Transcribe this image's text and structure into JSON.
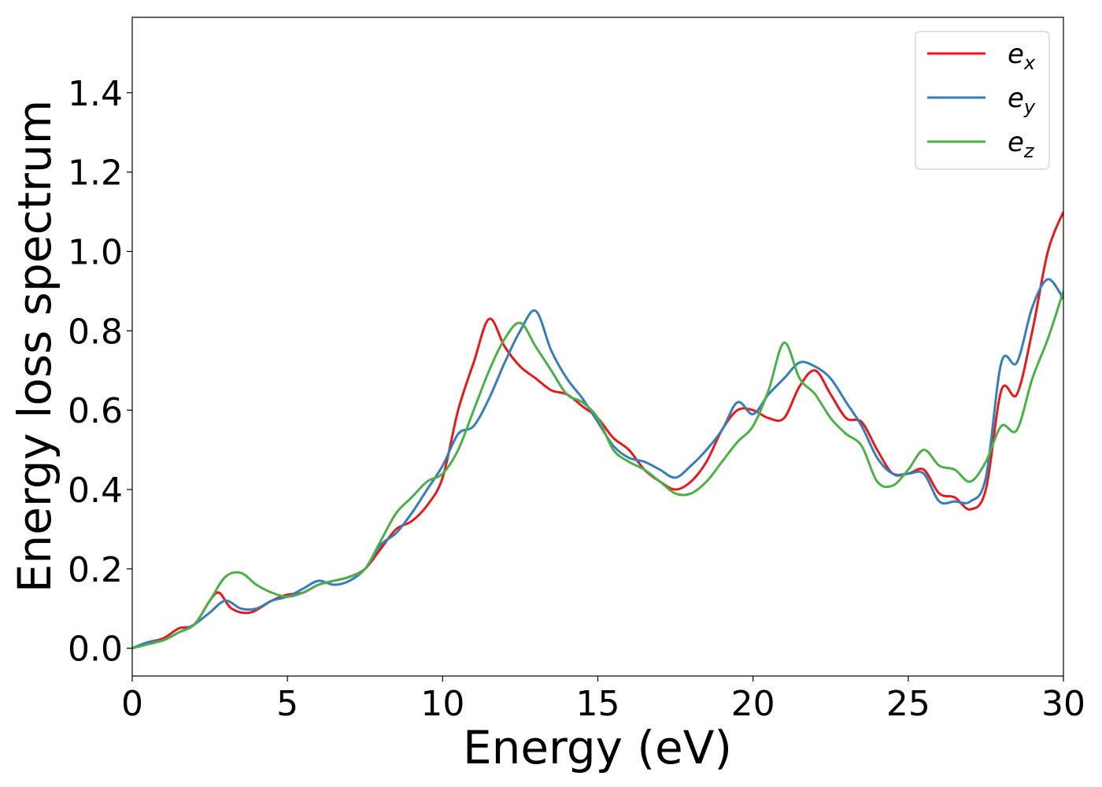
{
  "chart_data": {
    "type": "line",
    "title": "",
    "xlabel": "Energy (eV)",
    "ylabel": "Energy loss spectrum",
    "xlim": [
      0,
      30
    ],
    "ylim": [
      -0.07,
      1.59
    ],
    "xticks": [
      0,
      5,
      10,
      15,
      20,
      25,
      30
    ],
    "yticks": [
      0.0,
      0.2,
      0.4,
      0.6,
      0.8,
      1.0,
      1.2,
      1.4
    ],
    "xtick_labels": [
      "0",
      "5",
      "10",
      "15",
      "20",
      "25",
      "30"
    ],
    "ytick_labels": [
      "0.0",
      "0.2",
      "0.4",
      "0.6",
      "0.8",
      "1.0",
      "1.2",
      "1.4"
    ],
    "grid": false,
    "legend_position": "top-right",
    "series": [
      {
        "name": "e",
        "subscript": "x",
        "color": "#e41a1c",
        "x": [
          0,
          0.5,
          1,
          1.5,
          2,
          2.5,
          2.8,
          3.2,
          3.8,
          4.5,
          5,
          5.5,
          6,
          6.5,
          7,
          7.5,
          8,
          8.5,
          9,
          9.5,
          10,
          10.5,
          11,
          11.5,
          12,
          12.5,
          13,
          13.5,
          14,
          14.5,
          15,
          15.5,
          16,
          16.5,
          17,
          17.5,
          18,
          18.5,
          19,
          19.5,
          20,
          20.5,
          21,
          21.5,
          22,
          22.5,
          23,
          23.5,
          24,
          24.5,
          25,
          25.5,
          26,
          26.5,
          27,
          27.5,
          28,
          28.5,
          29,
          29.5,
          30
        ],
        "y": [
          0.0,
          0.015,
          0.025,
          0.05,
          0.06,
          0.12,
          0.14,
          0.1,
          0.09,
          0.12,
          0.135,
          0.14,
          0.16,
          0.17,
          0.18,
          0.2,
          0.25,
          0.3,
          0.32,
          0.36,
          0.43,
          0.6,
          0.72,
          0.83,
          0.76,
          0.71,
          0.68,
          0.65,
          0.64,
          0.61,
          0.58,
          0.53,
          0.5,
          0.45,
          0.42,
          0.4,
          0.42,
          0.47,
          0.55,
          0.6,
          0.6,
          0.58,
          0.58,
          0.66,
          0.7,
          0.64,
          0.58,
          0.57,
          0.5,
          0.44,
          0.44,
          0.45,
          0.39,
          0.38,
          0.35,
          0.4,
          0.65,
          0.64,
          0.8,
          1.0,
          1.1
        ]
      },
      {
        "name": "e",
        "subscript": "y",
        "color": "#377eb8",
        "x": [
          0,
          0.5,
          1,
          1.5,
          2,
          2.5,
          3,
          3.5,
          4,
          4.5,
          5,
          5.5,
          6,
          6.5,
          7,
          7.5,
          8,
          8.5,
          9,
          9.5,
          10,
          10.5,
          11,
          11.5,
          12,
          12.5,
          13,
          13.5,
          14,
          14.5,
          15,
          15.5,
          16,
          16.5,
          17,
          17.5,
          18,
          18.5,
          19,
          19.5,
          20,
          20.5,
          21,
          21.5,
          22,
          22.5,
          23,
          23.5,
          24,
          24.5,
          25,
          25.5,
          26,
          26.5,
          27,
          27.5,
          28,
          28.5,
          29,
          29.5,
          30
        ],
        "y": [
          0.0,
          0.015,
          0.02,
          0.04,
          0.06,
          0.09,
          0.12,
          0.1,
          0.1,
          0.12,
          0.13,
          0.15,
          0.17,
          0.16,
          0.17,
          0.2,
          0.26,
          0.29,
          0.34,
          0.4,
          0.46,
          0.54,
          0.56,
          0.63,
          0.72,
          0.8,
          0.85,
          0.75,
          0.68,
          0.63,
          0.57,
          0.51,
          0.48,
          0.47,
          0.45,
          0.43,
          0.46,
          0.5,
          0.55,
          0.62,
          0.59,
          0.64,
          0.68,
          0.72,
          0.71,
          0.68,
          0.62,
          0.56,
          0.48,
          0.44,
          0.44,
          0.44,
          0.37,
          0.37,
          0.37,
          0.43,
          0.72,
          0.72,
          0.86,
          0.93,
          0.88
        ]
      },
      {
        "name": "e",
        "subscript": "z",
        "color": "#4daf4a",
        "x": [
          0,
          0.5,
          1,
          1.5,
          2,
          2.5,
          3,
          3.5,
          4,
          4.5,
          5,
          5.5,
          6,
          6.5,
          7,
          7.5,
          8,
          8.5,
          9,
          9.5,
          10,
          10.5,
          11,
          11.5,
          12,
          12.5,
          13,
          13.5,
          14,
          14.5,
          15,
          15.5,
          16,
          16.5,
          17,
          17.5,
          18,
          18.5,
          19,
          19.5,
          20,
          20.5,
          21,
          21.5,
          22,
          22.5,
          23,
          23.5,
          24,
          24.5,
          25,
          25.5,
          26,
          26.5,
          27,
          27.5,
          28,
          28.5,
          29,
          29.5,
          30
        ],
        "y": [
          0.0,
          0.01,
          0.02,
          0.04,
          0.06,
          0.12,
          0.18,
          0.19,
          0.16,
          0.14,
          0.13,
          0.14,
          0.16,
          0.17,
          0.18,
          0.2,
          0.27,
          0.34,
          0.38,
          0.42,
          0.44,
          0.5,
          0.6,
          0.7,
          0.78,
          0.82,
          0.76,
          0.7,
          0.64,
          0.62,
          0.58,
          0.5,
          0.47,
          0.45,
          0.42,
          0.39,
          0.39,
          0.42,
          0.47,
          0.52,
          0.56,
          0.65,
          0.77,
          0.68,
          0.64,
          0.58,
          0.54,
          0.51,
          0.42,
          0.41,
          0.45,
          0.5,
          0.46,
          0.45,
          0.42,
          0.47,
          0.56,
          0.55,
          0.68,
          0.78,
          0.9
        ]
      }
    ]
  }
}
